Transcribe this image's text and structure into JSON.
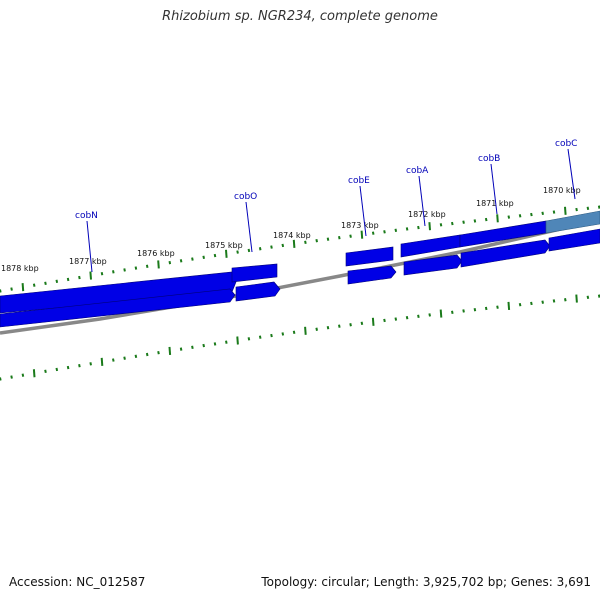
{
  "title": "Rhizobium sp. NGR234, complete genome",
  "footer": {
    "accession": "Accession: NC_012587",
    "topology": "Topology: circular; Length: 3,925,702 bp; Genes: 3,691"
  },
  "ticks": [
    "1878 kbp",
    "1877 kbp",
    "1876 kbp",
    "1875 kbp",
    "1874 kbp",
    "1873 kbp",
    "1872 kbp",
    "1871 kbp",
    "1870 kbp"
  ],
  "genes": [
    "cobN",
    "cobO",
    "cobE",
    "cobA",
    "cobB",
    "cobC"
  ],
  "colors": {
    "gene": "#0000e6",
    "gene_highlight": "#4f86b8",
    "backbone": "#888888",
    "tick": "#1a7a1a",
    "gene_label": "#0000b8"
  }
}
